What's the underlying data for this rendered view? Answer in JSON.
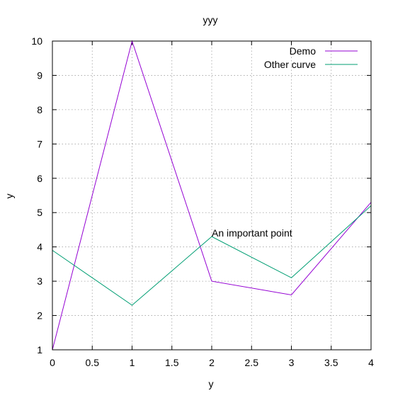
{
  "chart_data": {
    "type": "line",
    "title": "yyy",
    "xlabel": "y",
    "ylabel": "y",
    "xlim": [
      0,
      4
    ],
    "ylim": [
      1,
      10
    ],
    "xticks": [
      0,
      0.5,
      1,
      1.5,
      2,
      2.5,
      3,
      3.5,
      4
    ],
    "xtick_labels": [
      "0",
      "0.5",
      "1",
      "1.5",
      "2",
      "2.5",
      "3",
      "3.5",
      "4"
    ],
    "yticks": [
      1,
      2,
      3,
      4,
      5,
      6,
      7,
      8,
      9,
      10
    ],
    "ytick_labels": [
      "1",
      "2",
      "3",
      "4",
      "5",
      "6",
      "7",
      "8",
      "9",
      "10"
    ],
    "grid": true,
    "legend_position": "top-right",
    "series": [
      {
        "name": "Demo",
        "color": "#9400d3",
        "x": [
          0,
          1,
          2,
          3,
          4
        ],
        "y": [
          1,
          10,
          3,
          2.6,
          5.3
        ]
      },
      {
        "name": "Other curve",
        "color": "#009e73",
        "x": [
          0,
          1,
          2,
          3,
          4
        ],
        "y": [
          3.9,
          2.3,
          4.3,
          3.1,
          5.2
        ]
      }
    ],
    "annotations": [
      {
        "text": "An important point",
        "x": 2,
        "y": 4.3
      }
    ]
  }
}
